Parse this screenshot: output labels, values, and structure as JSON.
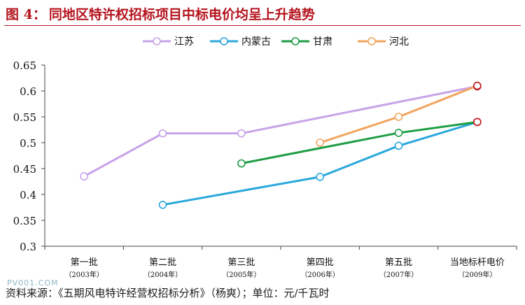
{
  "header": {
    "figure_label": "图 4：",
    "title": "同地区特许权招标项目中标电价均呈上升趋势"
  },
  "footer": {
    "source": "资料来源：《五期风电特许经营权招标分析》（杨爽）；单位：元/千瓦时"
  },
  "watermark": "PV001.COM",
  "colors": {
    "title": "#b4131d",
    "jiangsu": "#c8a2e8",
    "neimenggu": "#2aa8dc",
    "gansu": "#1e9d45",
    "hebei": "#f3a35c",
    "endpoint": "#c0141c"
  },
  "chart_data": {
    "type": "line",
    "categories": [
      {
        "name": "第一批",
        "year": "（2003年）"
      },
      {
        "name": "第二批",
        "year": "（2004年）"
      },
      {
        "name": "第三批",
        "year": "（2005年）"
      },
      {
        "name": "第四批",
        "year": "（2006年）"
      },
      {
        "name": "第五批",
        "year": "（2007年）"
      },
      {
        "name": "当地标杆电价",
        "year": "（2009年）"
      }
    ],
    "series": [
      {
        "key": "jiangsu",
        "name": "江苏",
        "values": [
          0.435,
          0.518,
          0.518,
          null,
          null,
          0.609
        ]
      },
      {
        "key": "neimenggu",
        "name": "内蒙古",
        "values": [
          null,
          0.38,
          null,
          0.434,
          0.494,
          0.54
        ]
      },
      {
        "key": "gansu",
        "name": "甘肃",
        "values": [
          null,
          null,
          0.46,
          null,
          0.519,
          0.54
        ]
      },
      {
        "key": "hebei",
        "name": "河北",
        "values": [
          null,
          null,
          null,
          0.5,
          0.55,
          0.61
        ]
      }
    ],
    "ylim": [
      0.3,
      0.65
    ],
    "yticks": [
      "0.3",
      "0.35",
      "0.4",
      "0.45",
      "0.5",
      "0.55",
      "0.6",
      "0.65"
    ],
    "legend_position": "top",
    "grid": false
  }
}
